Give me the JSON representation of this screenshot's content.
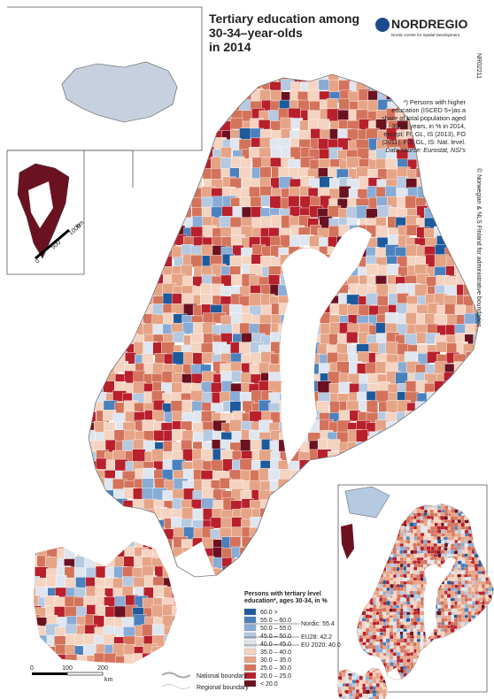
{
  "header": {
    "title_lines": [
      "Tertiary education among",
      "30-34–year-olds",
      "in 2014"
    ],
    "logo": "NORDREGIO",
    "logo_subtitle": "Nordic Centre for Spatial Development",
    "map_code": "NR02211"
  },
  "note": {
    "lines": [
      "*) Persons with higher",
      "education (ISCED 5+)as a",
      "share of total population aged",
      "30-34 years, in % in 2014,",
      "except: FI, GL, IS (2013), FO",
      "(2011). FO, GL, IS: Nat. level."
    ],
    "source": "Data source: Eurostat, NSI's"
  },
  "copyright": "© Norwegian & NLS Finland for administrative boundaries",
  "legend": {
    "title_lines": [
      "Persons with tertiary level",
      "education*, ages 30-34, in %"
    ],
    "classes": [
      {
        "label": "60.0 >",
        "color": "#1d5a9c"
      },
      {
        "label": "55.0 – 60.0",
        "color": "#4a80bd"
      },
      {
        "label": "50.0 – 55.0",
        "color": "#88acd5"
      },
      {
        "label": "45.0 – 50.0",
        "color": "#b5c9e1"
      },
      {
        "label": "40.0 – 45.0",
        "color": "#dfe6ef"
      },
      {
        "label": "35.0 – 40.0",
        "color": "#f4d3c1"
      },
      {
        "label": "30.0 – 35.0",
        "color": "#e6a487"
      },
      {
        "label": "25.0 – 30.0",
        "color": "#d4735b"
      },
      {
        "label": "20.0 – 25.0",
        "color": "#b8202c"
      },
      {
        "label": "< 20.0",
        "color": "#6b1221"
      }
    ],
    "references": [
      "Nordic: 55.4",
      "EU28: 42.2",
      "EU 2020: 40.0"
    ],
    "boundaries": [
      "National boundary",
      "Regional boundary"
    ]
  },
  "scale_main": [
    "0",
    "100",
    "200",
    "km"
  ],
  "scale_greenland": [
    "0",
    "500",
    "1000",
    "km"
  ]
}
